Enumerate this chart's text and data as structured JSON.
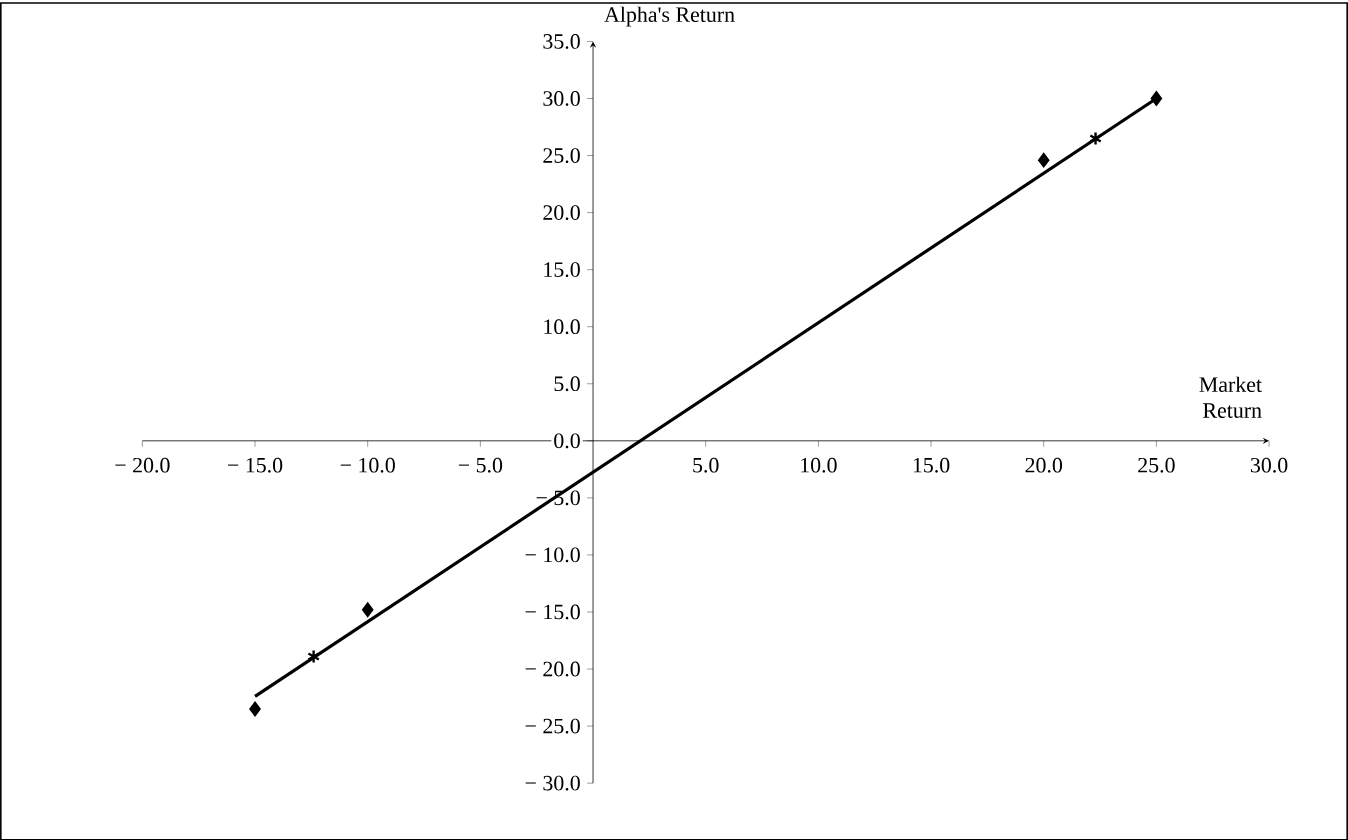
{
  "chart_data": {
    "type": "scatter",
    "xlabel": "Market Return",
    "ylabel": "Alpha's Return",
    "series": [
      {
        "marker": "diamond",
        "color": "#000000",
        "x": [
          -15,
          -10,
          20,
          25
        ],
        "values": [
          -23.5,
          -14.8,
          24.6,
          30
        ]
      },
      {
        "type": "scatter",
        "marker": "cross",
        "color": "#000000",
        "x": [
          -12.4,
          22.3
        ],
        "values": [
          -18.9,
          26.5
        ]
      },
      {
        "type": "line",
        "marker": "none",
        "color": "#000000",
        "x": [
          -15,
          25
        ],
        "values": [
          -22.4,
          30
        ]
      }
    ],
    "xlim": [
      -20,
      30
    ],
    "ylim": [
      -30,
      35
    ],
    "xticks": [
      {
        "value": -20,
        "label": "− 20.0"
      },
      {
        "value": -15,
        "label": "− 15.0"
      },
      {
        "value": -10,
        "label": "− 10.0"
      },
      {
        "value": -5,
        "label": "− 5.0"
      },
      {
        "value": 5,
        "label": "5.0"
      },
      {
        "value": 10,
        "label": "10.0"
      },
      {
        "value": 15,
        "label": "15.0"
      },
      {
        "value": 20,
        "label": "20.0"
      },
      {
        "value": 25,
        "label": "25.0"
      },
      {
        "value": 30,
        "label": "30.0"
      }
    ],
    "yticks": [
      {
        "value": -30,
        "label": "− 30.0"
      },
      {
        "value": -25,
        "label": "− 25.0"
      },
      {
        "value": -20,
        "label": "− 20.0"
      },
      {
        "value": -15,
        "label": "− 15.0"
      },
      {
        "value": -10,
        "label": "− 10.0"
      },
      {
        "value": -5,
        "label": "− 5.0"
      },
      {
        "value": 0,
        "label": "0.0"
      },
      {
        "value": 5,
        "label": "5.0"
      },
      {
        "value": 10,
        "label": "10.0"
      },
      {
        "value": 15,
        "label": "15.0"
      },
      {
        "value": 20,
        "label": "20.0"
      },
      {
        "value": 25,
        "label": "25.0"
      },
      {
        "value": 30,
        "label": "30.0"
      },
      {
        "value": 35,
        "label": "35.0"
      }
    ],
    "grid": false
  }
}
